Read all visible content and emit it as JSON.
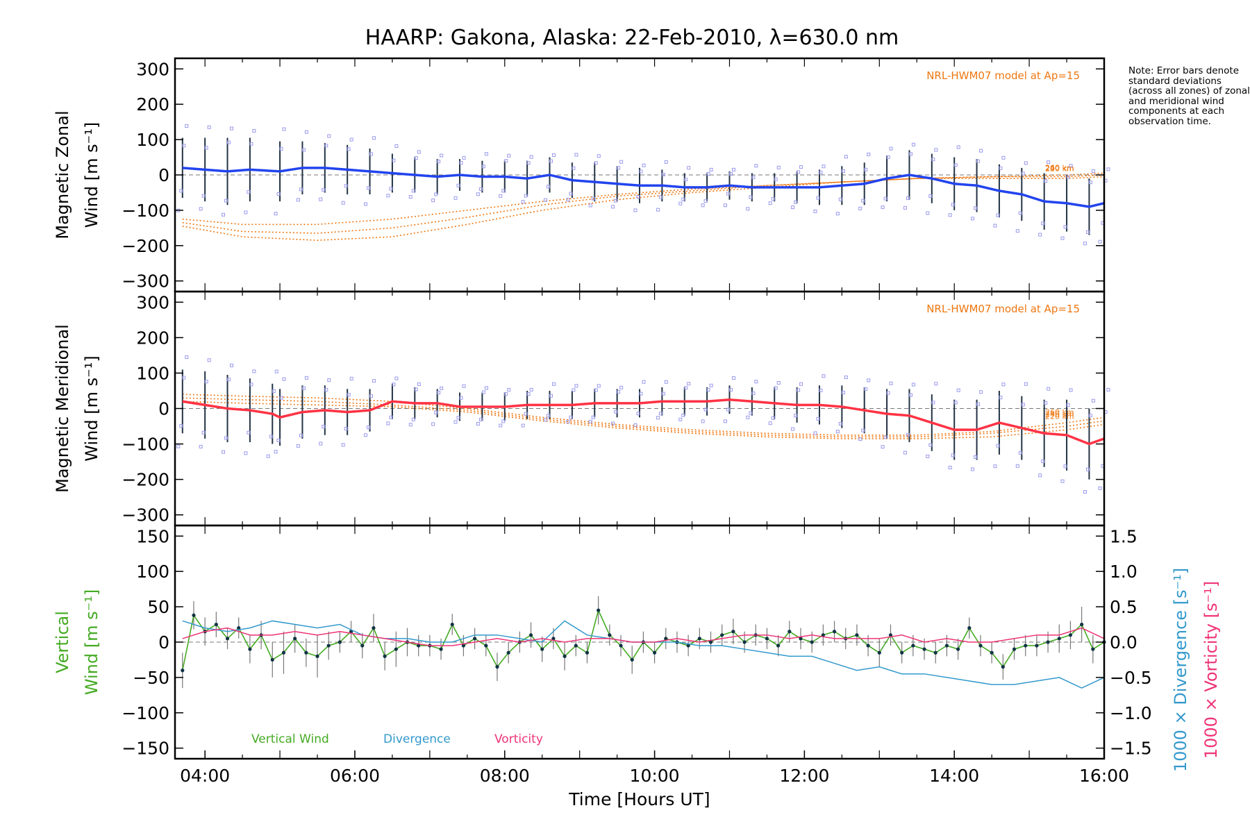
{
  "title": "HAARP: Gakona,  Alaska: 22-Feb-2010, λ=630.0 nm",
  "note": "Note: Error bars denote standard deviations (across all zones) of zonal and meridional wind components at each observation time.",
  "colors": {
    "zonal_mean": "#2244ee",
    "meridional_mean": "#ff3344",
    "vertical": "#44aa22",
    "divergence": "#3399cc",
    "vorticity": "#ee3377",
    "model": "#ee7711",
    "zone_points": "#9999ee",
    "errorbar": "#223344"
  },
  "chart_data": [
    {
      "type": "line",
      "name": "zonal",
      "ylabel_line1": "Magnetic Zonal",
      "ylabel_line2": "Wind [m s⁻¹]",
      "ylim": [
        -330,
        330
      ],
      "yticks": [
        300,
        200,
        100,
        0,
        -100,
        -200,
        -300
      ],
      "xlim": [
        3.6,
        16.0
      ],
      "model_label": "NRL-HWM07 model at Ap=15",
      "model_heights": [
        "260 km",
        "240 km",
        "220 km"
      ],
      "mean": {
        "x": [
          3.7,
          4.0,
          4.3,
          4.6,
          5.0,
          5.3,
          5.6,
          5.9,
          6.2,
          6.5,
          6.8,
          7.1,
          7.4,
          7.7,
          8.0,
          8.3,
          8.6,
          8.9,
          9.2,
          9.5,
          9.8,
          10.1,
          10.4,
          10.7,
          11.0,
          11.3,
          11.6,
          11.9,
          12.2,
          12.5,
          12.8,
          13.1,
          13.4,
          13.7,
          14.0,
          14.3,
          14.6,
          14.9,
          15.2,
          15.5,
          15.8,
          16.0
        ],
        "y": [
          20,
          15,
          10,
          15,
          10,
          20,
          20,
          15,
          10,
          5,
          0,
          -5,
          0,
          -5,
          -5,
          -10,
          0,
          -15,
          -20,
          -25,
          -30,
          -30,
          -35,
          -35,
          -30,
          -35,
          -35,
          -35,
          -35,
          -30,
          -25,
          -10,
          0,
          -10,
          -25,
          -30,
          -45,
          -55,
          -75,
          -80,
          -90,
          -80
        ],
        "err": [
          85,
          90,
          95,
          90,
          85,
          75,
          70,
          70,
          65,
          55,
          50,
          50,
          45,
          45,
          45,
          50,
          50,
          50,
          55,
          50,
          50,
          45,
          40,
          40,
          40,
          40,
          40,
          45,
          50,
          55,
          60,
          65,
          70,
          70,
          75,
          75,
          75,
          75,
          80,
          80,
          80,
          80
        ]
      },
      "model": [
        {
          "x": [
            3.7,
            4.5,
            5.5,
            6.5,
            7.5,
            8.5,
            9.5,
            10.5,
            11.5,
            12.5,
            13.5,
            14.5,
            15.5,
            16.0
          ],
          "y": [
            -145,
            -175,
            -185,
            -175,
            -140,
            -100,
            -70,
            -50,
            -35,
            -20,
            -10,
            -5,
            0,
            5
          ]
        },
        {
          "x": [
            3.7,
            4.5,
            5.5,
            6.5,
            7.5,
            8.5,
            9.5,
            10.5,
            11.5,
            12.5,
            13.5,
            14.5,
            15.5,
            16.0
          ],
          "y": [
            -135,
            -160,
            -165,
            -150,
            -120,
            -85,
            -60,
            -45,
            -30,
            -20,
            -10,
            -5,
            -5,
            0
          ]
        },
        {
          "x": [
            3.7,
            4.5,
            5.5,
            6.5,
            7.5,
            8.5,
            9.5,
            10.5,
            11.5,
            12.5,
            13.5,
            14.5,
            15.5,
            16.0
          ],
          "y": [
            -125,
            -140,
            -140,
            -125,
            -100,
            -75,
            -55,
            -40,
            -30,
            -20,
            -10,
            -10,
            -10,
            -5
          ]
        }
      ]
    },
    {
      "type": "line",
      "name": "meridional",
      "ylabel_line1": "Magnetic Meridional",
      "ylabel_line2": "Wind [m s⁻¹]",
      "ylim": [
        -330,
        330
      ],
      "yticks": [
        300,
        200,
        100,
        0,
        -100,
        -200,
        -300
      ],
      "xlim": [
        3.6,
        16.0
      ],
      "model_label": "NRL-HWM07 model at Ap=15",
      "model_heights": [
        "260 km",
        "240 km",
        "220 km"
      ],
      "mean": {
        "x": [
          3.7,
          4.0,
          4.3,
          4.6,
          4.9,
          5.0,
          5.3,
          5.6,
          5.9,
          6.2,
          6.5,
          6.8,
          7.1,
          7.4,
          7.7,
          8.0,
          8.3,
          8.6,
          8.9,
          9.2,
          9.5,
          9.8,
          10.1,
          10.4,
          10.7,
          11.0,
          11.3,
          11.6,
          11.9,
          12.2,
          12.5,
          12.8,
          13.1,
          13.4,
          13.7,
          14.0,
          14.3,
          14.6,
          14.9,
          15.2,
          15.5,
          15.8,
          16.0
        ],
        "y": [
          20,
          10,
          0,
          -5,
          -15,
          -25,
          -10,
          -5,
          -10,
          -5,
          20,
          15,
          15,
          5,
          5,
          5,
          10,
          10,
          10,
          15,
          15,
          15,
          20,
          20,
          20,
          25,
          20,
          15,
          10,
          10,
          5,
          -5,
          -15,
          -20,
          -40,
          -60,
          -60,
          -40,
          -55,
          -70,
          -75,
          -100,
          -85
        ],
        "err": [
          90,
          95,
          95,
          90,
          85,
          80,
          75,
          70,
          65,
          60,
          50,
          45,
          40,
          40,
          40,
          40,
          40,
          40,
          40,
          40,
          40,
          40,
          40,
          40,
          40,
          40,
          40,
          45,
          50,
          55,
          60,
          65,
          70,
          75,
          80,
          85,
          85,
          90,
          90,
          95,
          100,
          100,
          100
        ]
      },
      "model": [
        {
          "x": [
            3.7,
            4.5,
            5.5,
            6.5,
            7.5,
            8.5,
            9.5,
            10.5,
            11.5,
            12.5,
            13.5,
            14.5,
            15.5,
            16.0
          ],
          "y": [
            40,
            35,
            30,
            20,
            0,
            -25,
            -45,
            -60,
            -70,
            -75,
            -75,
            -65,
            -40,
            -25
          ]
        },
        {
          "x": [
            3.7,
            4.5,
            5.5,
            6.5,
            7.5,
            8.5,
            9.5,
            10.5,
            11.5,
            12.5,
            13.5,
            14.5,
            15.5,
            16.0
          ],
          "y": [
            30,
            25,
            20,
            10,
            -5,
            -30,
            -50,
            -65,
            -75,
            -80,
            -80,
            -70,
            -50,
            -35
          ]
        },
        {
          "x": [
            3.7,
            4.5,
            5.5,
            6.5,
            7.5,
            8.5,
            9.5,
            10.5,
            11.5,
            12.5,
            13.5,
            14.5,
            15.5,
            16.0
          ],
          "y": [
            20,
            15,
            10,
            5,
            -10,
            -35,
            -55,
            -70,
            -80,
            -85,
            -85,
            -80,
            -60,
            -45
          ]
        }
      ]
    },
    {
      "type": "line",
      "name": "vertical",
      "ylabel_line1": "Vertical",
      "ylabel_line2": "Wind [m s⁻¹]",
      "ylim": [
        -165,
        165
      ],
      "yticks": [
        150,
        100,
        50,
        0,
        -50,
        -100,
        -150
      ],
      "xlim": [
        3.6,
        16.0
      ],
      "xticks": [
        4,
        6,
        8,
        10,
        12,
        14,
        16
      ],
      "xticklabels": [
        "04:00",
        "06:00",
        "08:00",
        "10:00",
        "12:00",
        "14:00",
        "16:00"
      ],
      "xlabel": "Time [Hours UT]",
      "y2label_divergence": "1000 × Divergence [s⁻¹]",
      "y2label_vorticity": "1000 × Vorticity [s⁻¹]",
      "y2lim": [
        -1.65,
        1.65
      ],
      "y2ticks": [
        1.5,
        1.0,
        0.5,
        0.0,
        -0.5,
        -1.0,
        -1.5
      ],
      "y2ticklabels": [
        "1.5",
        "1.0",
        "0.5",
        "0.0",
        "−0.5",
        "−1.0",
        "−1.5"
      ],
      "legend": [
        "Vertical Wind",
        "Divergence",
        "Vorticity"
      ],
      "series": [
        {
          "name": "Vertical Wind",
          "x": [
            3.7,
            3.85,
            4.0,
            4.15,
            4.3,
            4.45,
            4.6,
            4.75,
            4.9,
            5.05,
            5.2,
            5.35,
            5.5,
            5.65,
            5.8,
            5.95,
            6.1,
            6.25,
            6.4,
            6.55,
            6.7,
            6.85,
            7.0,
            7.15,
            7.3,
            7.45,
            7.6,
            7.75,
            7.9,
            8.05,
            8.2,
            8.35,
            8.5,
            8.65,
            8.8,
            8.95,
            9.1,
            9.25,
            9.4,
            9.55,
            9.7,
            9.85,
            10.0,
            10.15,
            10.3,
            10.45,
            10.6,
            10.75,
            10.9,
            11.05,
            11.2,
            11.35,
            11.5,
            11.65,
            11.8,
            11.95,
            12.1,
            12.25,
            12.4,
            12.55,
            12.7,
            12.85,
            13.0,
            13.15,
            13.3,
            13.45,
            13.6,
            13.75,
            13.9,
            14.05,
            14.2,
            14.35,
            14.5,
            14.65,
            14.8,
            14.95,
            15.1,
            15.25,
            15.4,
            15.55,
            15.7,
            15.85,
            16.0
          ],
          "y": [
            -40,
            38,
            15,
            25,
            5,
            20,
            -10,
            10,
            -25,
            -15,
            5,
            -15,
            -20,
            -5,
            0,
            15,
            -5,
            20,
            -20,
            -10,
            0,
            -5,
            -5,
            -10,
            25,
            -5,
            5,
            -5,
            -35,
            -15,
            0,
            10,
            -10,
            5,
            -20,
            -5,
            -15,
            45,
            10,
            -5,
            -25,
            0,
            -15,
            5,
            0,
            -5,
            5,
            0,
            10,
            15,
            0,
            10,
            5,
            -5,
            15,
            5,
            0,
            10,
            15,
            5,
            10,
            -5,
            -15,
            10,
            -15,
            -5,
            -10,
            -15,
            -5,
            -10,
            20,
            -5,
            -15,
            -35,
            -10,
            -5,
            -5,
            0,
            5,
            10,
            25,
            -10,
            0
          ],
          "err": [
            25,
            20,
            20,
            18,
            15,
            15,
            20,
            20,
            25,
            30,
            20,
            20,
            30,
            20,
            15,
            15,
            18,
            20,
            20,
            25,
            20,
            15,
            15,
            15,
            15,
            15,
            15,
            15,
            20,
            15,
            15,
            18,
            18,
            15,
            20,
            15,
            15,
            20,
            15,
            15,
            20,
            15,
            15,
            15,
            15,
            15,
            15,
            15,
            15,
            18,
            15,
            15,
            15,
            15,
            15,
            15,
            15,
            15,
            15,
            15,
            15,
            15,
            20,
            15,
            15,
            15,
            15,
            15,
            15,
            15,
            15,
            15,
            15,
            18,
            15,
            15,
            15,
            15,
            20,
            20,
            25,
            20,
            15
          ]
        },
        {
          "name": "Divergence",
          "x": [
            3.7,
            4.0,
            4.3,
            4.6,
            4.9,
            5.2,
            5.5,
            5.8,
            6.1,
            6.4,
            6.7,
            7.0,
            7.3,
            7.6,
            7.9,
            8.2,
            8.5,
            8.8,
            9.1,
            9.4,
            9.7,
            10.0,
            10.3,
            10.6,
            10.9,
            11.2,
            11.5,
            11.8,
            12.1,
            12.4,
            12.7,
            13.0,
            13.3,
            13.6,
            13.9,
            14.2,
            14.5,
            14.8,
            15.1,
            15.4,
            15.7,
            16.0
          ],
          "y": [
            0.3,
            0.2,
            0.15,
            0.2,
            0.3,
            0.25,
            0.2,
            0.25,
            0.1,
            0.05,
            0.05,
            0.0,
            0.0,
            0.1,
            0.1,
            0.05,
            0.0,
            0.3,
            0.1,
            0.05,
            0.0,
            0.0,
            0.0,
            -0.05,
            -0.05,
            -0.1,
            -0.15,
            -0.2,
            -0.2,
            -0.3,
            -0.4,
            -0.35,
            -0.45,
            -0.45,
            -0.5,
            -0.55,
            -0.6,
            -0.6,
            -0.55,
            -0.5,
            -0.65,
            -0.5
          ]
        },
        {
          "name": "Vorticity",
          "x": [
            3.7,
            4.0,
            4.3,
            4.6,
            4.9,
            5.2,
            5.5,
            5.8,
            6.1,
            6.4,
            6.7,
            7.0,
            7.3,
            7.6,
            7.9,
            8.2,
            8.5,
            8.8,
            9.1,
            9.4,
            9.7,
            10.0,
            10.3,
            10.6,
            10.9,
            11.2,
            11.5,
            11.8,
            12.1,
            12.4,
            12.7,
            13.0,
            13.3,
            13.6,
            13.9,
            14.2,
            14.5,
            14.8,
            15.1,
            15.4,
            15.7,
            16.0
          ],
          "y": [
            0.05,
            0.15,
            0.2,
            0.1,
            0.1,
            0.15,
            0.1,
            0.15,
            0.1,
            0.05,
            0.0,
            -0.05,
            -0.05,
            0.0,
            0.05,
            0.0,
            0.05,
            0.0,
            0.05,
            0.05,
            0.0,
            0.0,
            0.05,
            0.0,
            0.05,
            0.1,
            0.1,
            0.05,
            0.1,
            0.05,
            0.05,
            0.05,
            0.1,
            0.0,
            0.05,
            0.0,
            0.0,
            0.05,
            0.1,
            0.1,
            0.2,
            0.05
          ]
        }
      ]
    }
  ]
}
